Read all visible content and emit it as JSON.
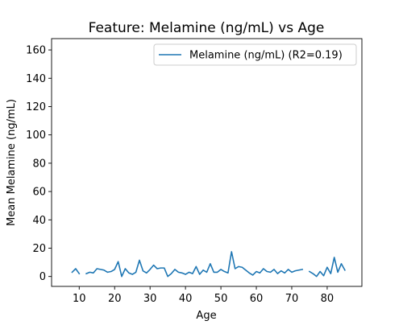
{
  "chart_data": {
    "type": "line",
    "title": "Feature: Melamine (ng/mL) vs Age",
    "xlabel": "Age",
    "ylabel": "Mean Melamine (ng/mL)",
    "xlim": [
      2.2,
      89.8
    ],
    "ylim": [
      -7,
      168
    ],
    "xticks": [
      10,
      20,
      30,
      40,
      50,
      60,
      70,
      80
    ],
    "yticks": [
      0,
      20,
      40,
      60,
      80,
      100,
      120,
      140,
      160
    ],
    "grid": false,
    "legend_position": "top-right",
    "series": [
      {
        "name": "Melamine (ng/mL) (R2=0.19)",
        "color": "#1f77b4",
        "segments": [
          {
            "x": [
              8,
              9,
              10
            ],
            "y": [
              3,
              5.5,
              2
            ]
          },
          {
            "x": [
              12,
              13,
              14,
              15,
              16,
              17,
              18,
              19,
              20,
              21,
              22,
              23,
              24,
              25,
              26,
              27,
              28,
              29,
              30,
              31,
              32,
              33,
              34,
              35,
              36,
              37,
              38,
              39,
              40,
              41,
              42,
              43,
              44,
              45,
              46,
              47,
              48,
              49,
              50,
              51,
              52,
              53,
              54,
              55,
              56,
              57,
              58,
              59,
              60,
              61,
              62,
              63,
              64,
              65,
              66,
              67,
              68,
              69,
              70,
              71,
              72,
              73
            ],
            "y": [
              2,
              3,
              2.5,
              5.5,
              5,
              4.5,
              3,
              3.5,
              5,
              10.5,
              0,
              5.5,
              2.5,
              1.5,
              3,
              11.5,
              4,
              2.5,
              5,
              8,
              5.5,
              6,
              6,
              0,
              2,
              5,
              3,
              2.5,
              1.5,
              3,
              2,
              7,
              1.5,
              4.5,
              3,
              9,
              3,
              3,
              5,
              3.5,
              2.5,
              17.5,
              5.5,
              7,
              6.5,
              4.5,
              2.5,
              1,
              3.5,
              2.5,
              5.5,
              3.5,
              3,
              5,
              2,
              4,
              2.5,
              5,
              3,
              4,
              4.5,
              5
            ]
          },
          {
            "x": [
              75,
              76,
              77,
              78,
              79,
              80,
              81,
              82,
              83,
              84,
              85
            ],
            "y": [
              3.5,
              2,
              0,
              3.5,
              0.5,
              6.5,
              2,
              13.5,
              3,
              9,
              4.5
            ]
          }
        ]
      }
    ]
  }
}
